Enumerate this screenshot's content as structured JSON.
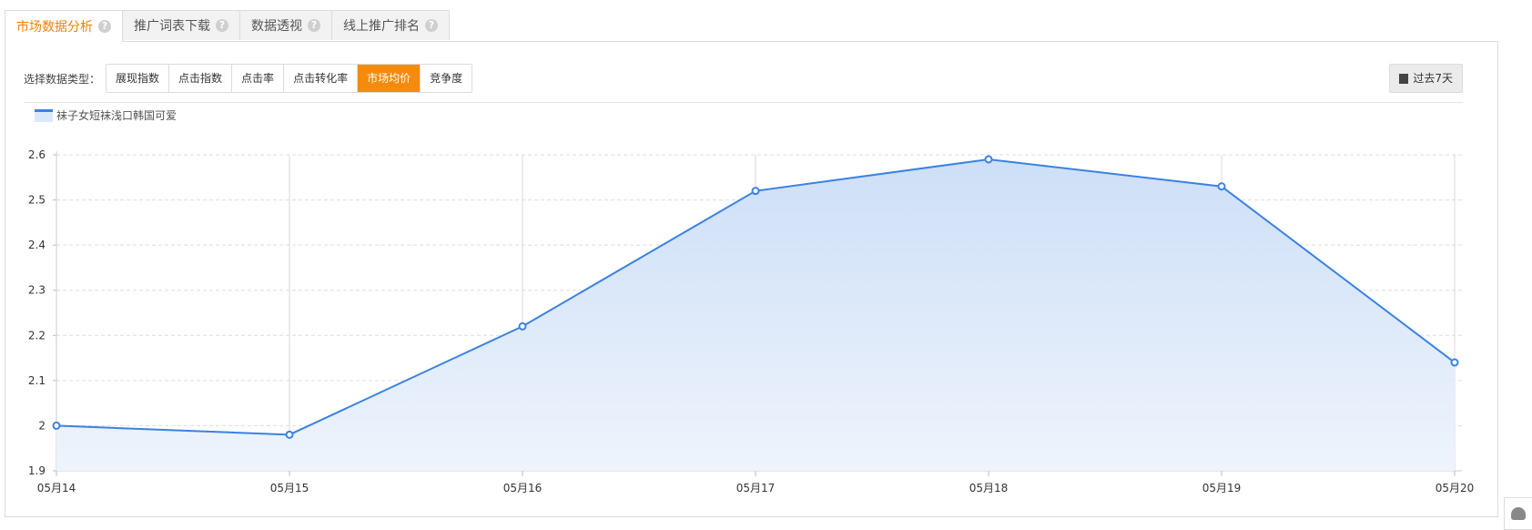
{
  "tabs": [
    {
      "label": "市场数据分析",
      "active": true
    },
    {
      "label": "推广词表下载",
      "active": false
    },
    {
      "label": "数据透视",
      "active": false
    },
    {
      "label": "线上推广排名",
      "active": false
    }
  ],
  "help_glyph": "?",
  "type_selector": {
    "label": "选择数据类型：",
    "options": [
      "展现指数",
      "点击指数",
      "点击率",
      "点击转化率",
      "市场均价",
      "竞争度"
    ],
    "selected": "市场均价"
  },
  "date_range": {
    "label": "过去7天",
    "icon": "calendar-icon"
  },
  "colors": {
    "accent": "#f58b0c",
    "line": "#3b82e0",
    "area": "#dbe8f9"
  },
  "chart_data": {
    "type": "area",
    "x": [
      "05月14",
      "05月15",
      "05月16",
      "05月17",
      "05月18",
      "05月19",
      "05月20"
    ],
    "series": [
      {
        "name": "袜子女短袜浅口韩国可爱",
        "values": [
          2.0,
          1.98,
          2.22,
          2.52,
          2.59,
          2.53,
          2.14
        ]
      }
    ],
    "y_ticks": [
      "1.9",
      "2",
      "2.1",
      "2.2",
      "2.3",
      "2.4",
      "2.5",
      "2.6"
    ],
    "ylim": [
      1.9,
      2.6
    ],
    "grid": true,
    "legend_position": "top-left"
  }
}
